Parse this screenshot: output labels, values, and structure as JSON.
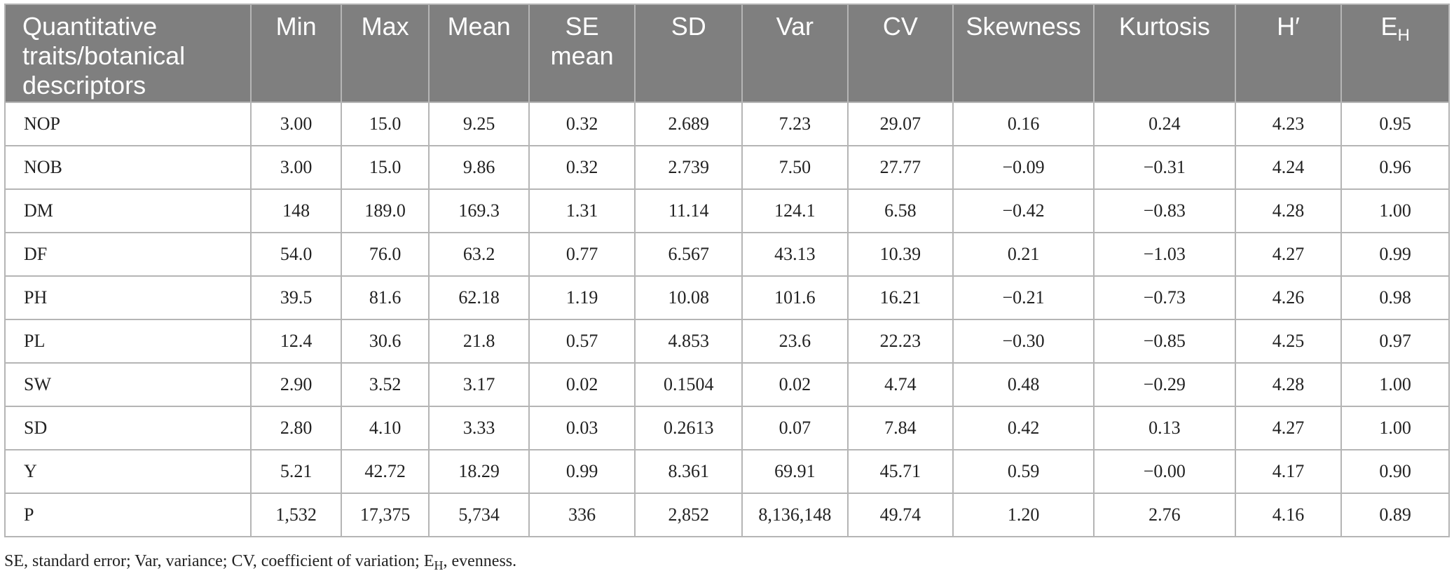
{
  "table": {
    "headers": [
      {
        "text": "Quantitative traits/botanical descriptors"
      },
      {
        "text": "Min"
      },
      {
        "text": "Max"
      },
      {
        "text": "Mean"
      },
      {
        "text": "SE mean"
      },
      {
        "text": "SD"
      },
      {
        "text": "Var"
      },
      {
        "text": "CV"
      },
      {
        "text": "Skewness"
      },
      {
        "text": "Kurtosis"
      },
      {
        "text": "H′"
      },
      {
        "text": "E",
        "sub": "H"
      }
    ],
    "rows": [
      [
        "NOP",
        "3.00",
        "15.0",
        "9.25",
        "0.32",
        "2.689",
        "7.23",
        "29.07",
        "0.16",
        "0.24",
        "4.23",
        "0.95"
      ],
      [
        "NOB",
        "3.00",
        "15.0",
        "9.86",
        "0.32",
        "2.739",
        "7.50",
        "27.77",
        "−0.09",
        "−0.31",
        "4.24",
        "0.96"
      ],
      [
        "DM",
        "148",
        "189.0",
        "169.3",
        "1.31",
        "11.14",
        "124.1",
        "6.58",
        "−0.42",
        "−0.83",
        "4.28",
        "1.00"
      ],
      [
        "DF",
        "54.0",
        "76.0",
        "63.2",
        "0.77",
        "6.567",
        "43.13",
        "10.39",
        "0.21",
        "−1.03",
        "4.27",
        "0.99"
      ],
      [
        "PH",
        "39.5",
        "81.6",
        "62.18",
        "1.19",
        "10.08",
        "101.6",
        "16.21",
        "−0.21",
        "−0.73",
        "4.26",
        "0.98"
      ],
      [
        "PL",
        "12.4",
        "30.6",
        "21.8",
        "0.57",
        "4.853",
        "23.6",
        "22.23",
        "−0.30",
        "−0.85",
        "4.25",
        "0.97"
      ],
      [
        "SW",
        "2.90",
        "3.52",
        "3.17",
        "0.02",
        "0.1504",
        "0.02",
        "4.74",
        "0.48",
        "−0.29",
        "4.28",
        "1.00"
      ],
      [
        "SD",
        "2.80",
        "4.10",
        "3.33",
        "0.03",
        "0.2613",
        "0.07",
        "7.84",
        "0.42",
        "0.13",
        "4.27",
        "1.00"
      ],
      [
        "Y",
        "5.21",
        "42.72",
        "18.29",
        "0.99",
        "8.361",
        "69.91",
        "45.71",
        "0.59",
        "−0.00",
        "4.17",
        "0.90"
      ],
      [
        "P",
        "1,532",
        "17,375",
        "5,734",
        "336",
        "2,852",
        "8,136,148",
        "49.74",
        "1.20",
        "2.76",
        "4.16",
        "0.89"
      ]
    ]
  },
  "footnote": {
    "pre": "SE, standard error; Var, variance; CV, coefficient of variation; E",
    "sub": "H",
    "post": ", evenness."
  },
  "colors": {
    "header_bg": "#7f7f7f",
    "header_text": "#ffffff",
    "grid": "#b5b5b5",
    "body_text": "#222222"
  }
}
